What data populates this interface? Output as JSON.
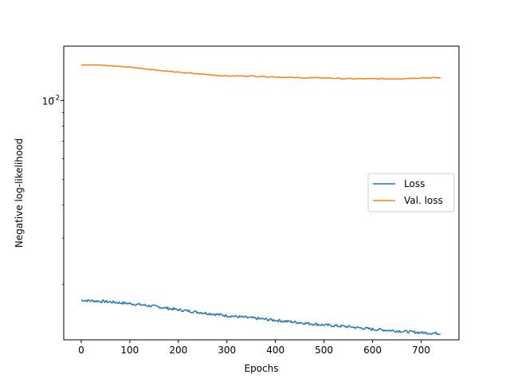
{
  "chart_data": {
    "type": "line",
    "title": "",
    "xlabel": "Epochs",
    "ylabel": "Negative log-likelihood",
    "yscale": "log",
    "xlim": [
      -36,
      778
    ],
    "ylim": [
      0.00123,
      0.0161
    ],
    "x_ticks": [
      0,
      100,
      200,
      300,
      400,
      500,
      600,
      700
    ],
    "y_ticks": [
      {
        "value": 0.01,
        "label": "10",
        "exponent": "−2"
      }
    ],
    "grid": false,
    "legend_position": "center-right",
    "series": [
      {
        "name": "Loss",
        "color": "#1f77b4",
        "x": [
          0,
          50,
          100,
          150,
          200,
          250,
          300,
          350,
          400,
          450,
          500,
          550,
          600,
          650,
          700,
          740
        ],
        "y": [
          0.00174,
          0.00172,
          0.00169,
          0.00165,
          0.0016,
          0.00156,
          0.00152,
          0.00149,
          0.00146,
          0.00143,
          0.0014,
          0.00138,
          0.00135,
          0.00133,
          0.00131,
          0.0013
        ]
      },
      {
        "name": "Val. loss",
        "color": "#ff7f0e",
        "x": [
          0,
          50,
          100,
          150,
          200,
          250,
          300,
          350,
          400,
          450,
          500,
          550,
          600,
          650,
          700,
          740
        ],
        "y": [
          0.0137,
          0.0136,
          0.0134,
          0.0131,
          0.0128,
          0.0126,
          0.0124,
          0.0124,
          0.0123,
          0.0122,
          0.0122,
          0.0121,
          0.0121,
          0.0121,
          0.0122,
          0.0122
        ]
      }
    ]
  }
}
